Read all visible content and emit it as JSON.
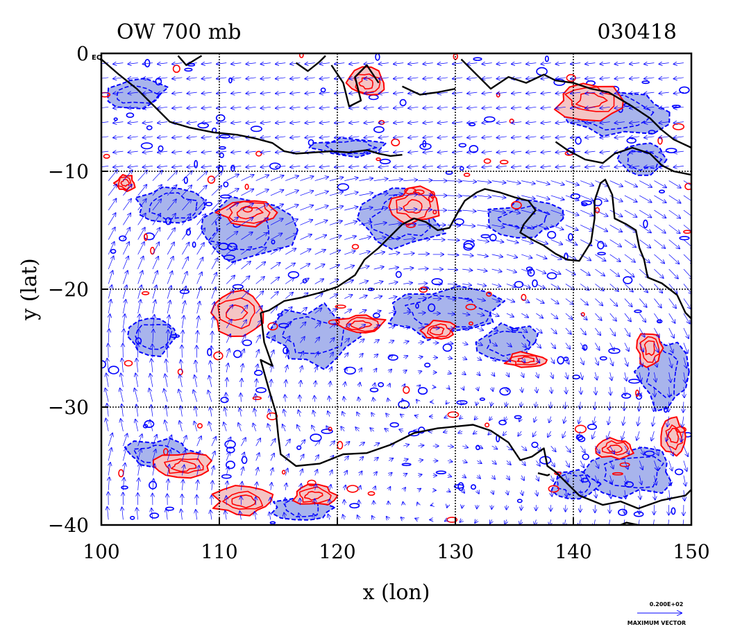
{
  "chart_data": {
    "type": "contour",
    "title_left": "OW 700 mb",
    "title_right": "030418",
    "xlabel": "x (lon)",
    "ylabel": "y (lat)",
    "xlim": [
      100,
      150
    ],
    "ylim": [
      -40,
      0
    ],
    "x_ticks": [
      100,
      110,
      120,
      130,
      140,
      150
    ],
    "x_tick_labels": [
      "100",
      "110",
      "120",
      "130",
      "140",
      "150"
    ],
    "y_ticks": [
      0,
      -10,
      -20,
      -30,
      -40
    ],
    "y_tick_labels": [
      "0",
      "−10",
      "−20",
      "−30",
      "−40"
    ],
    "y_tick_suffix_at_0": "EQ",
    "grid": true,
    "vector_legend": {
      "magnitude_label": "0.200E+02",
      "caption": "MAXIMUM VECTOR"
    },
    "colors": {
      "positive_contour": "#ff0000",
      "positive_fill": "#f4c4c4",
      "negative_contour": "#0000ff",
      "negative_fill": "#a8b4ec",
      "vectors": "#0000ff",
      "coastline": "#000000"
    },
    "red_regions": [
      {
        "lon": 111.5,
        "lat": -22.0,
        "rx": 2.2,
        "ry": 1.8
      },
      {
        "lon": 112.5,
        "lat": -13.5,
        "rx": 2.5,
        "ry": 1.2
      },
      {
        "lon": 126.5,
        "lat": -13.0,
        "rx": 2.0,
        "ry": 1.5
      },
      {
        "lon": 107.0,
        "lat": -35.0,
        "rx": 2.5,
        "ry": 1.0
      },
      {
        "lon": 118.0,
        "lat": -37.5,
        "rx": 1.8,
        "ry": 0.9
      },
      {
        "lon": 112.0,
        "lat": -38.0,
        "rx": 2.5,
        "ry": 1.2
      },
      {
        "lon": 143.5,
        "lat": -33.5,
        "rx": 1.5,
        "ry": 0.8
      },
      {
        "lon": 146.5,
        "lat": -25.0,
        "rx": 1.2,
        "ry": 1.5
      },
      {
        "lon": 122.0,
        "lat": -23.0,
        "rx": 2.0,
        "ry": 0.8
      },
      {
        "lon": 128.5,
        "lat": -23.5,
        "rx": 1.5,
        "ry": 0.8
      },
      {
        "lon": 136.0,
        "lat": -26.0,
        "rx": 1.8,
        "ry": 0.6
      },
      {
        "lon": 141.5,
        "lat": -4.0,
        "rx": 3.0,
        "ry": 1.5
      },
      {
        "lon": 122.5,
        "lat": -2.5,
        "rx": 1.5,
        "ry": 1.2
      },
      {
        "lon": 102.0,
        "lat": -11.0,
        "rx": 0.8,
        "ry": 0.7
      },
      {
        "lon": 148.5,
        "lat": -32.5,
        "rx": 1.0,
        "ry": 1.5
      }
    ],
    "blue_regions": [
      {
        "lon": 125.5,
        "lat": -14.0,
        "rx": 3.5,
        "ry": 2.5
      },
      {
        "lon": 112.0,
        "lat": -15.0,
        "rx": 4.0,
        "ry": 2.5
      },
      {
        "lon": 106.0,
        "lat": -13.0,
        "rx": 3.0,
        "ry": 1.5
      },
      {
        "lon": 129.0,
        "lat": -22.0,
        "rx": 5.0,
        "ry": 2.0
      },
      {
        "lon": 118.0,
        "lat": -24.0,
        "rx": 3.5,
        "ry": 2.5
      },
      {
        "lon": 145.0,
        "lat": -35.5,
        "rx": 3.5,
        "ry": 2.0
      },
      {
        "lon": 143.5,
        "lat": -5.0,
        "rx": 4.5,
        "ry": 2.0
      },
      {
        "lon": 136.0,
        "lat": -14.0,
        "rx": 3.0,
        "ry": 1.5
      },
      {
        "lon": 105.0,
        "lat": -34.0,
        "rx": 3.0,
        "ry": 1.2
      },
      {
        "lon": 104.5,
        "lat": -24.0,
        "rx": 2.0,
        "ry": 1.5
      },
      {
        "lon": 134.5,
        "lat": -24.5,
        "rx": 2.5,
        "ry": 1.5
      },
      {
        "lon": 147.5,
        "lat": -27.0,
        "rx": 2.0,
        "ry": 3.0
      },
      {
        "lon": 140.0,
        "lat": -36.5,
        "rx": 2.0,
        "ry": 1.2
      },
      {
        "lon": 117.0,
        "lat": -38.5,
        "rx": 2.5,
        "ry": 1.0
      },
      {
        "lon": 103.0,
        "lat": -3.5,
        "rx": 2.5,
        "ry": 1.2
      },
      {
        "lon": 121.0,
        "lat": -8.0,
        "rx": 3.0,
        "ry": 0.8
      },
      {
        "lon": 146.0,
        "lat": -9.0,
        "rx": 2.0,
        "ry": 1.2
      }
    ],
    "coastlines": [
      [
        [
          100.0,
          -0.5
        ],
        [
          101.5,
          -1.8
        ],
        [
          103.0,
          -3.0
        ],
        [
          104.5,
          -4.5
        ],
        [
          105.8,
          -5.8
        ],
        [
          107.5,
          -6.3
        ],
        [
          109.5,
          -6.7
        ],
        [
          111.5,
          -6.9
        ],
        [
          113.0,
          -7.2
        ],
        [
          114.5,
          -7.6
        ],
        [
          115.5,
          -8.3
        ],
        [
          116.5,
          -8.5
        ],
        [
          118.0,
          -8.4
        ],
        [
          119.5,
          -8.3
        ],
        [
          121.0,
          -8.4
        ],
        [
          122.5,
          -8.2
        ],
        [
          123.5,
          -8.5
        ],
        [
          124.5,
          -8.7
        ],
        [
          125.5,
          -8.6
        ]
      ],
      [
        [
          106.5,
          -0.2
        ],
        [
          107.2,
          -1.0
        ],
        [
          108.0,
          -0.5
        ],
        [
          108.5,
          -0.2
        ]
      ],
      [
        [
          116.5,
          -0.8
        ],
        [
          117.5,
          -1.5
        ],
        [
          118.5,
          -0.7
        ],
        [
          119.0,
          -0.2
        ]
      ],
      [
        [
          119.5,
          -1.0
        ],
        [
          120.5,
          -2.5
        ],
        [
          121.0,
          -4.5
        ],
        [
          122.0,
          -4.0
        ],
        [
          121.5,
          -2.0
        ],
        [
          122.5,
          -1.0
        ],
        [
          123.5,
          -2.5
        ]
      ],
      [
        [
          125.5,
          -2.8
        ],
        [
          127.0,
          -3.5
        ],
        [
          128.5,
          -3.3
        ],
        [
          130.0,
          -3.0
        ]
      ],
      [
        [
          130.5,
          -0.5
        ],
        [
          131.5,
          -1.5
        ],
        [
          133.0,
          -3.0
        ],
        [
          134.5,
          -2.0
        ],
        [
          136.0,
          -2.5
        ],
        [
          137.5,
          -1.8
        ],
        [
          138.5,
          -2.3
        ],
        [
          140.0,
          -2.5
        ],
        [
          141.5,
          -3.0
        ],
        [
          143.0,
          -3.3
        ],
        [
          145.0,
          -4.5
        ],
        [
          146.5,
          -5.5
        ],
        [
          147.5,
          -6.5
        ],
        [
          148.5,
          -7.3
        ],
        [
          150.0,
          -8.0
        ]
      ],
      [
        [
          138.5,
          -7.5
        ],
        [
          139.5,
          -8.2
        ],
        [
          141.0,
          -9.0
        ],
        [
          142.5,
          -9.3
        ],
        [
          143.5,
          -8.5
        ],
        [
          145.0,
          -8.0
        ],
        [
          146.5,
          -8.5
        ],
        [
          147.5,
          -9.5
        ],
        [
          148.5,
          -10.0
        ],
        [
          150.0,
          -10.3
        ]
      ],
      [
        [
          113.5,
          -22.0
        ],
        [
          113.8,
          -24.5
        ],
        [
          114.5,
          -26.5
        ],
        [
          113.5,
          -26.0
        ],
        [
          114.2,
          -28.5
        ],
        [
          114.8,
          -30.5
        ],
        [
          115.0,
          -32.5
        ],
        [
          115.2,
          -34.0
        ],
        [
          116.5,
          -35.0
        ],
        [
          118.5,
          -34.8
        ],
        [
          120.5,
          -34.0
        ],
        [
          122.5,
          -33.9
        ],
        [
          124.5,
          -33.2
        ],
        [
          126.5,
          -32.2
        ],
        [
          128.5,
          -31.8
        ],
        [
          130.5,
          -31.6
        ],
        [
          131.5,
          -31.5
        ],
        [
          133.0,
          -32.0
        ],
        [
          134.5,
          -33.0
        ],
        [
          135.5,
          -34.5
        ],
        [
          136.5,
          -34.2
        ],
        [
          137.5,
          -33.5
        ],
        [
          137.8,
          -35.0
        ],
        [
          138.5,
          -35.5
        ],
        [
          139.5,
          -36.5
        ],
        [
          140.5,
          -37.5
        ],
        [
          142.5,
          -38.3
        ],
        [
          144.0,
          -38.0
        ],
        [
          145.5,
          -38.6
        ],
        [
          147.5,
          -37.9
        ],
        [
          149.5,
          -37.5
        ],
        [
          150.0,
          -37.0
        ]
      ],
      [
        [
          113.5,
          -22.0
        ],
        [
          114.2,
          -21.8
        ],
        [
          115.5,
          -21.0
        ],
        [
          117.0,
          -20.7
        ],
        [
          118.5,
          -20.3
        ],
        [
          120.0,
          -19.8
        ],
        [
          121.5,
          -18.8
        ],
        [
          122.3,
          -17.5
        ],
        [
          123.5,
          -16.5
        ],
        [
          124.5,
          -15.5
        ],
        [
          125.5,
          -14.5
        ],
        [
          126.5,
          -14.0
        ],
        [
          127.5,
          -14.3
        ],
        [
          128.5,
          -15.0
        ],
        [
          129.5,
          -14.8
        ],
        [
          130.2,
          -13.5
        ],
        [
          130.8,
          -12.5
        ],
        [
          131.8,
          -11.8
        ],
        [
          132.5,
          -11.5
        ],
        [
          133.8,
          -11.8
        ],
        [
          135.0,
          -12.2
        ],
        [
          136.2,
          -12.5
        ],
        [
          136.8,
          -13.3
        ],
        [
          135.8,
          -14.5
        ],
        [
          135.5,
          -15.2
        ],
        [
          136.5,
          -15.8
        ],
        [
          137.5,
          -16.3
        ],
        [
          138.5,
          -17.0
        ],
        [
          139.5,
          -17.5
        ],
        [
          140.5,
          -17.6
        ],
        [
          141.5,
          -16.0
        ],
        [
          141.8,
          -14.0
        ],
        [
          141.8,
          -12.5
        ],
        [
          142.3,
          -11.0
        ],
        [
          142.7,
          -10.7
        ],
        [
          143.3,
          -12.0
        ],
        [
          143.5,
          -14.0
        ],
        [
          144.5,
          -14.5
        ],
        [
          145.3,
          -15.0
        ],
        [
          145.6,
          -16.5
        ],
        [
          146.0,
          -17.5
        ],
        [
          146.3,
          -19.0
        ],
        [
          147.5,
          -19.5
        ],
        [
          148.8,
          -20.5
        ],
        [
          149.5,
          -22.0
        ],
        [
          150.0,
          -22.5
        ]
      ],
      [
        [
          144.0,
          -40.0
        ],
        [
          144.5,
          -39.8
        ],
        [
          145.5,
          -40.0
        ]
      ],
      [
        [
          137.0,
          -35.6
        ],
        [
          137.8,
          -35.8
        ],
        [
          138.0,
          -35.7
        ]
      ]
    ]
  }
}
